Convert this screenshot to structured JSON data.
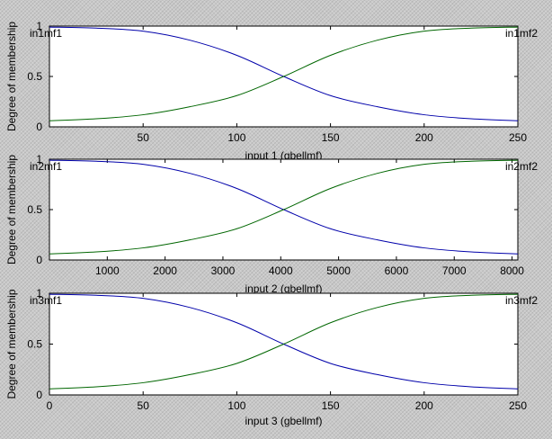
{
  "chart_data": [
    {
      "type": "line",
      "title": "",
      "xlabel": "input 1 (gbellmf)",
      "ylabel": "Degree of membership",
      "xlim": [
        0,
        250
      ],
      "ylim": [
        0,
        1
      ],
      "xticks": [
        50,
        100,
        150,
        200,
        250
      ],
      "yticks": [
        0,
        0.5,
        1
      ],
      "series": [
        {
          "name": "in1mf1",
          "color": "#0000aa",
          "x": [
            0,
            25,
            50,
            75,
            100,
            125,
            150,
            175,
            200,
            225,
            250
          ],
          "y": [
            0.99,
            0.98,
            0.95,
            0.86,
            0.71,
            0.5,
            0.31,
            0.2,
            0.12,
            0.08,
            0.06
          ]
        },
        {
          "name": "in1mf2",
          "color": "#006600",
          "x": [
            0,
            25,
            50,
            75,
            100,
            125,
            150,
            175,
            200,
            225,
            250
          ],
          "y": [
            0.06,
            0.08,
            0.12,
            0.2,
            0.31,
            0.5,
            0.71,
            0.86,
            0.95,
            0.98,
            0.99
          ]
        }
      ]
    },
    {
      "type": "line",
      "title": "",
      "xlabel": "input 2 (gbellmf)",
      "ylabel": "Degree of membership",
      "xlim": [
        0,
        8100
      ],
      "ylim": [
        0,
        1
      ],
      "xticks": [
        1000,
        2000,
        3000,
        4000,
        5000,
        6000,
        7000,
        8000
      ],
      "yticks": [
        0,
        0.5,
        1
      ],
      "series": [
        {
          "name": "in2mf1",
          "color": "#0000aa",
          "x": [
            0,
            810,
            1620,
            2430,
            3240,
            4050,
            4860,
            5670,
            6480,
            7290,
            8100
          ],
          "y": [
            0.99,
            0.98,
            0.95,
            0.86,
            0.71,
            0.5,
            0.31,
            0.2,
            0.12,
            0.08,
            0.06
          ]
        },
        {
          "name": "in2mf2",
          "color": "#006600",
          "x": [
            0,
            810,
            1620,
            2430,
            3240,
            4050,
            4860,
            5670,
            6480,
            7290,
            8100
          ],
          "y": [
            0.06,
            0.08,
            0.12,
            0.2,
            0.31,
            0.5,
            0.71,
            0.86,
            0.95,
            0.98,
            0.99
          ]
        }
      ]
    },
    {
      "type": "line",
      "title": "",
      "xlabel": "input 3 (gbellmf)",
      "ylabel": "Degree of membership",
      "xlim": [
        0,
        250
      ],
      "ylim": [
        0,
        1
      ],
      "xticks": [
        0,
        50,
        100,
        150,
        200,
        250
      ],
      "yticks": [
        0,
        0.5,
        1
      ],
      "series": [
        {
          "name": "in3mf1",
          "color": "#0000aa",
          "x": [
            0,
            25,
            50,
            75,
            100,
            125,
            150,
            175,
            200,
            225,
            250
          ],
          "y": [
            0.99,
            0.98,
            0.95,
            0.86,
            0.71,
            0.5,
            0.31,
            0.2,
            0.12,
            0.08,
            0.06
          ]
        },
        {
          "name": "in3mf2",
          "color": "#006600",
          "x": [
            0,
            25,
            50,
            75,
            100,
            125,
            150,
            175,
            200,
            225,
            250
          ],
          "y": [
            0.06,
            0.08,
            0.12,
            0.2,
            0.31,
            0.5,
            0.71,
            0.86,
            0.95,
            0.98,
            0.99
          ]
        }
      ]
    }
  ]
}
